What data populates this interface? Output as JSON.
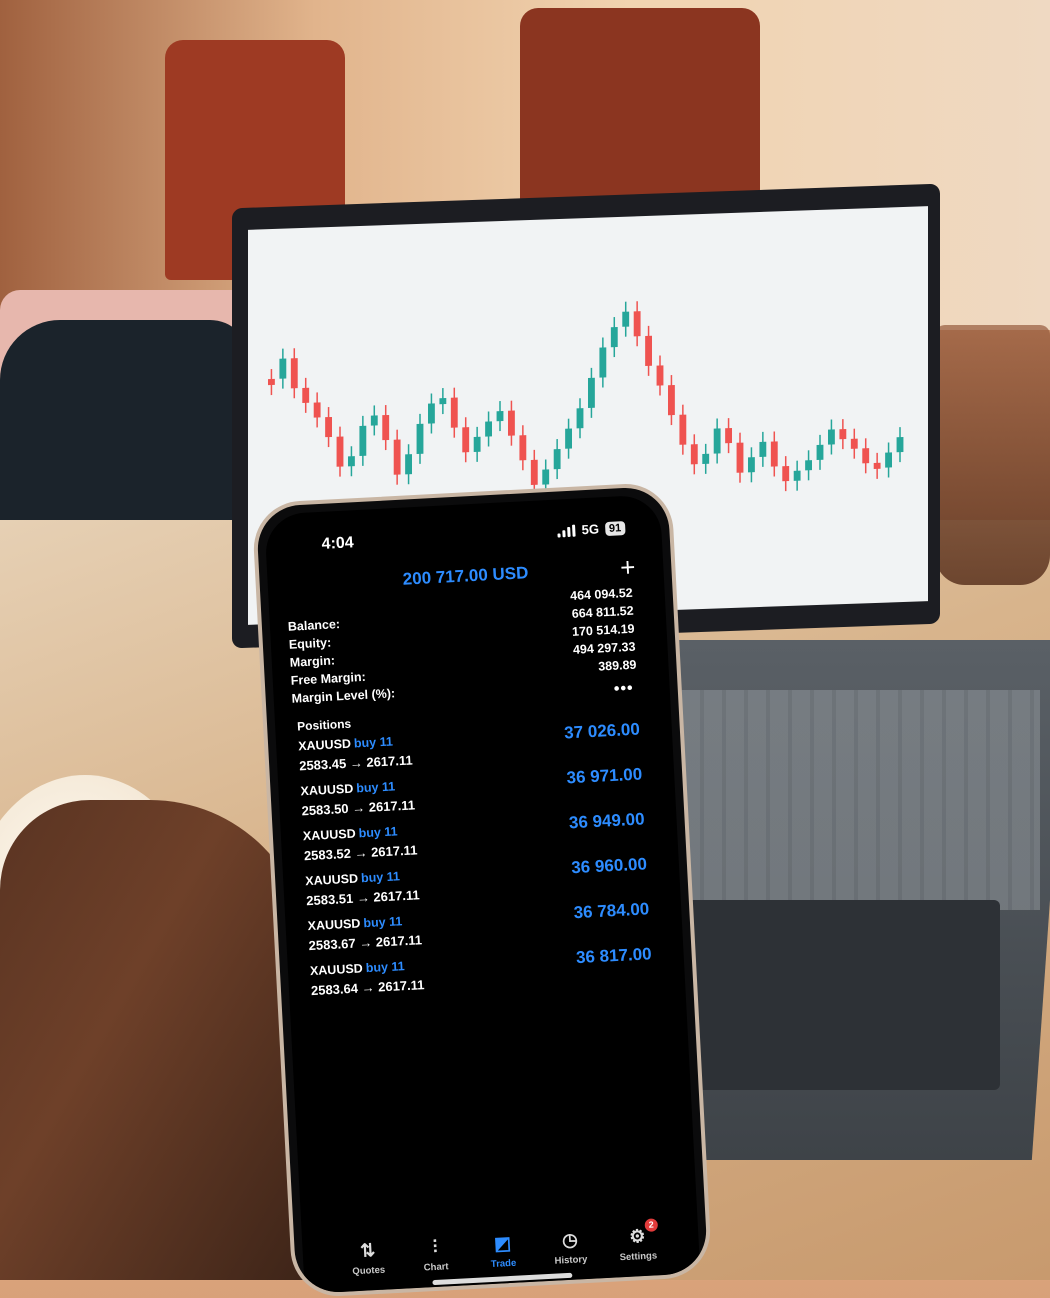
{
  "status": {
    "time": "4:04",
    "network": "5G",
    "battery": "91"
  },
  "header": {
    "title": "200 717.00 USD"
  },
  "summary": {
    "labels": [
      "Balance:",
      "Equity:",
      "Margin:",
      "Free Margin:",
      "Margin Level (%):"
    ],
    "values": [
      "464 094.52",
      "664 811.52",
      "170 514.19",
      "494 297.33",
      "389.89"
    ]
  },
  "positions_title": "Positions",
  "positions": [
    {
      "symbol": "XAUUSD",
      "side": "buy 11",
      "prices": "2583.45 → 2617.11",
      "profit": "37 026.00"
    },
    {
      "symbol": "XAUUSD",
      "side": "buy 11",
      "prices": "2583.50 → 2617.11",
      "profit": "36 971.00"
    },
    {
      "symbol": "XAUUSD",
      "side": "buy 11",
      "prices": "2583.52 → 2617.11",
      "profit": "36 949.00"
    },
    {
      "symbol": "XAUUSD",
      "side": "buy 11",
      "prices": "2583.51 → 2617.11",
      "profit": "36 960.00"
    },
    {
      "symbol": "XAUUSD",
      "side": "buy 11",
      "prices": "2583.67 → 2617.11",
      "profit": "36 784.00"
    },
    {
      "symbol": "XAUUSD",
      "side": "buy 11",
      "prices": "2583.64 → 2617.11",
      "profit": "36 817.00"
    }
  ],
  "tabs": [
    {
      "label": "Quotes",
      "icon": "quotes-icon"
    },
    {
      "label": "Chart",
      "icon": "chart-icon"
    },
    {
      "label": "Trade",
      "icon": "trade-icon",
      "active": true
    },
    {
      "label": "History",
      "icon": "history-icon"
    },
    {
      "label": "Settings",
      "icon": "settings-icon",
      "badge": "2"
    }
  ],
  "colors": {
    "accent": "#2d8cff",
    "badge": "#e23b3b",
    "candle_up": "#26a69a",
    "candle_down": "#ef5350"
  }
}
